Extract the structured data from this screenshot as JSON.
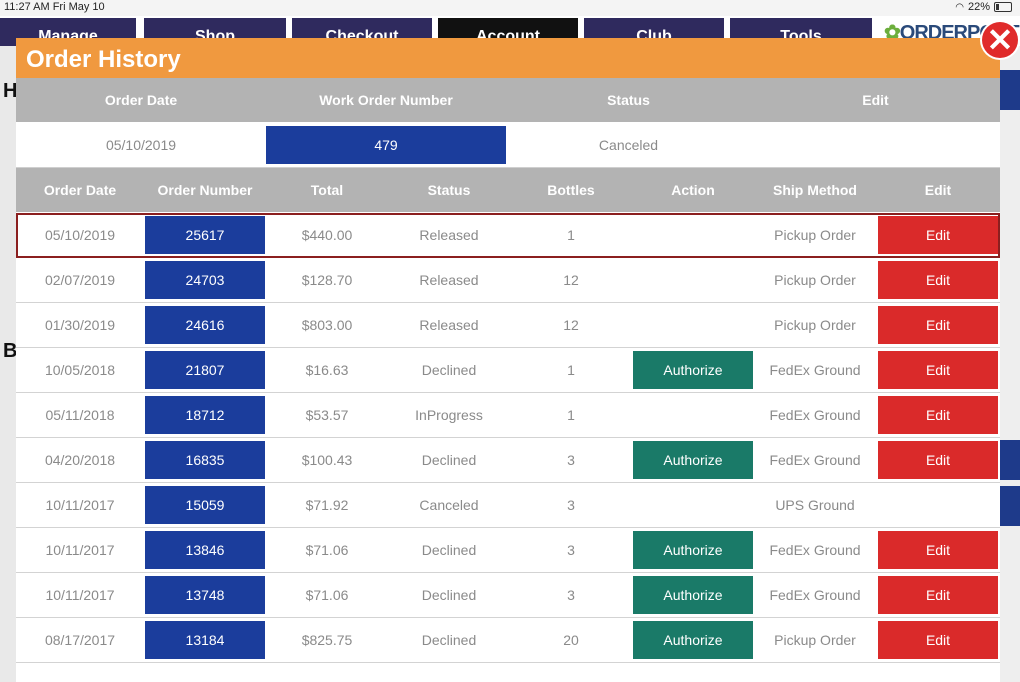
{
  "status_bar": {
    "time": "11:27 AM  Fri May 10",
    "battery": "22%"
  },
  "background": {
    "tabs": [
      "Manage",
      "Shop",
      "Checkout",
      "Account",
      "Club",
      "Tools"
    ],
    "logo": "ORDERPORT",
    "side_letters": [
      "H",
      "B"
    ]
  },
  "modal": {
    "title": "Order History",
    "close_label": "✕",
    "summary": {
      "headers": [
        "Order Date",
        "Work Order Number",
        "Status",
        "Edit"
      ],
      "order_date": "05/10/2019",
      "work_order_number": "479",
      "status": "Canceled",
      "edit": ""
    },
    "orders": {
      "headers": [
        "Order Date",
        "Order Number",
        "Total",
        "Status",
        "Bottles",
        "Action",
        "Ship Method",
        "Edit"
      ],
      "rows": [
        {
          "date": "05/10/2019",
          "number": "25617",
          "total": "$440.00",
          "status": "Released",
          "bottles": "1",
          "action": "",
          "ship": "Pickup Order",
          "edit": "Edit",
          "selected": true
        },
        {
          "date": "02/07/2019",
          "number": "24703",
          "total": "$128.70",
          "status": "Released",
          "bottles": "12",
          "action": "",
          "ship": "Pickup Order",
          "edit": "Edit"
        },
        {
          "date": "01/30/2019",
          "number": "24616",
          "total": "$803.00",
          "status": "Released",
          "bottles": "12",
          "action": "",
          "ship": "Pickup Order",
          "edit": "Edit"
        },
        {
          "date": "10/05/2018",
          "number": "21807",
          "total": "$16.63",
          "status": "Declined",
          "bottles": "1",
          "action": "Authorize",
          "ship": "FedEx Ground",
          "edit": "Edit"
        },
        {
          "date": "05/11/2018",
          "number": "18712",
          "total": "$53.57",
          "status": "InProgress",
          "bottles": "1",
          "action": "",
          "ship": "FedEx Ground",
          "edit": "Edit"
        },
        {
          "date": "04/20/2018",
          "number": "16835",
          "total": "$100.43",
          "status": "Declined",
          "bottles": "3",
          "action": "Authorize",
          "ship": "FedEx Ground",
          "edit": "Edit"
        },
        {
          "date": "10/11/2017",
          "number": "15059",
          "total": "$71.92",
          "status": "Canceled",
          "bottles": "3",
          "action": "",
          "ship": "UPS Ground",
          "edit": ""
        },
        {
          "date": "10/11/2017",
          "number": "13846",
          "total": "$71.06",
          "status": "Declined",
          "bottles": "3",
          "action": "Authorize",
          "ship": "FedEx Ground",
          "edit": "Edit"
        },
        {
          "date": "10/11/2017",
          "number": "13748",
          "total": "$71.06",
          "status": "Declined",
          "bottles": "3",
          "action": "Authorize",
          "ship": "FedEx Ground",
          "edit": "Edit"
        },
        {
          "date": "08/17/2017",
          "number": "13184",
          "total": "$825.75",
          "status": "Declined",
          "bottles": "20",
          "action": "Authorize",
          "ship": "Pickup Order",
          "edit": "Edit"
        }
      ]
    }
  },
  "colors": {
    "header_orange": "#f0993f",
    "order_blue": "#1b3d9c",
    "authorize_green": "#1a7a68",
    "edit_red": "#da2a2a",
    "table_header_gray": "#b3b3b3"
  }
}
